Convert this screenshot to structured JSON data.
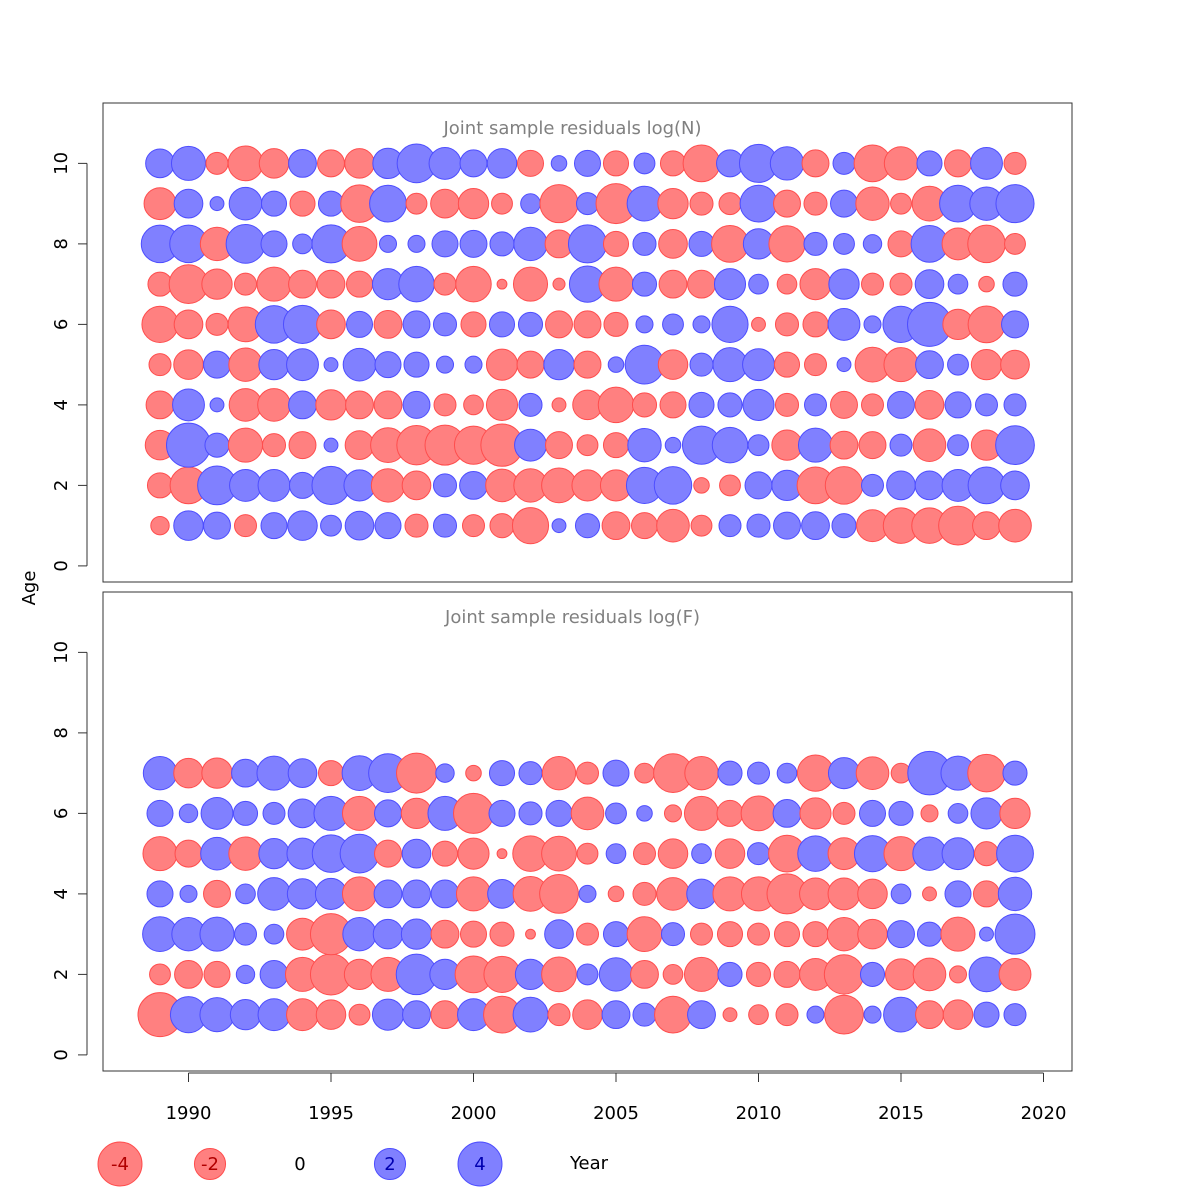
{
  "chart_data": [
    {
      "type": "scatter",
      "title": "Joint sample residuals log(N)",
      "xlabel": "Year",
      "ylabel": "Age",
      "xlim": [
        1987,
        2021
      ],
      "ylim": [
        -0.4,
        11.5
      ],
      "x_ticks": [
        1990,
        1995,
        2000,
        2005,
        2010,
        2015,
        2020
      ],
      "y_ticks": [
        0,
        2,
        4,
        6,
        8,
        10
      ],
      "show_x_tick_labels": false,
      "years": [
        1989,
        1990,
        1991,
        1992,
        1993,
        1994,
        1995,
        1996,
        1997,
        1998,
        1999,
        2000,
        2001,
        2002,
        2003,
        2004,
        2005,
        2006,
        2007,
        2008,
        2009,
        2010,
        2011,
        2012,
        2013,
        2014,
        2015,
        2016,
        2017,
        2018,
        2019
      ],
      "ages": [
        1,
        2,
        3,
        4,
        5,
        6,
        7,
        8,
        9,
        10
      ],
      "residuals": [
        [
          -0.7,
          -1.3,
          -1.8,
          -1.6,
          -1.0,
          -2.7,
          -1.2,
          2.9,
          -2.1,
          1.7
        ],
        [
          1.8,
          -2.8,
          4.0,
          2.1,
          -1.8,
          -1.7,
          -3.1,
          2.9,
          1.7,
          2.4
        ],
        [
          1.5,
          3.1,
          1.2,
          0.4,
          1.5,
          -1.0,
          -1.9,
          -2.3,
          0.4,
          -1.0
        ],
        [
          -1.0,
          2.1,
          -2.4,
          -2.2,
          -2.3,
          -2.5,
          -1.0,
          3.1,
          2.2,
          -2.5
        ],
        [
          1.4,
          2.1,
          -1.1,
          -2.2,
          1.9,
          2.9,
          -2.4,
          1.4,
          1.3,
          -1.8
        ],
        [
          1.8,
          1.4,
          -1.5,
          1.6,
          2.1,
          3.0,
          -1.6,
          0.8,
          -1.3,
          1.6
        ],
        [
          0.9,
          3.0,
          0.4,
          -1.9,
          0.4,
          -1.7,
          -1.6,
          3.0,
          1.3,
          -1.5
        ],
        [
          1.7,
          2.0,
          -1.7,
          -1.6,
          2.2,
          1.4,
          -1.4,
          -2.5,
          -2.9,
          -1.8
        ],
        [
          1.4,
          -2.3,
          -2.5,
          -1.6,
          1.4,
          -1.6,
          2.0,
          0.6,
          2.8,
          1.9
        ],
        [
          -1.1,
          -1.7,
          -3.2,
          1.5,
          1.3,
          1.5,
          2.6,
          0.6,
          -0.9,
          3.1
        ],
        [
          1.1,
          1.1,
          -3.3,
          -1.0,
          0.6,
          1.1,
          -1.0,
          1.4,
          -1.7,
          2.1
        ],
        [
          -1.0,
          1.6,
          -3.0,
          -0.8,
          0.6,
          -1.3,
          -2.6,
          1.5,
          -1.9,
          1.5
        ],
        [
          -1.2,
          -2.2,
          -3.7,
          -2.0,
          -2.0,
          1.3,
          -0.2,
          1.2,
          -0.9,
          1.8
        ],
        [
          -2.7,
          -2.3,
          2.1,
          1.1,
          -1.5,
          1.2,
          -2.4,
          2.3,
          0.8,
          -1.4
        ],
        [
          0.4,
          -2.5,
          -1.5,
          -0.4,
          1.9,
          -1.5,
          -0.3,
          -1.6,
          -3.0,
          0.5
        ],
        [
          1.2,
          -2.0,
          -0.9,
          -1.8,
          -1.5,
          -1.5,
          2.7,
          3.0,
          1.0,
          1.4
        ],
        [
          -1.6,
          -2.0,
          -1.3,
          -2.6,
          0.5,
          -1.2,
          -2.4,
          -1.3,
          -3.3,
          -1.3
        ],
        [
          -1.4,
          2.7,
          2.3,
          -1.2,
          3.1,
          0.6,
          1.2,
          1.1,
          2.5,
          0.9
        ],
        [
          -2.2,
          2.9,
          0.5,
          -1.4,
          -1.8,
          0.9,
          -1.6,
          -1.7,
          -1.9,
          -1.3
        ],
        [
          -0.9,
          -0.5,
          3.0,
          1.3,
          1.1,
          0.6,
          -1.6,
          1.3,
          -1.1,
          -2.8
        ],
        [
          1.0,
          -0.9,
          2.6,
          1.2,
          2.4,
          2.7,
          2.0,
          -2.8,
          -1.0,
          1.5
        ],
        [
          1.1,
          1.5,
          0.9,
          2.0,
          2.1,
          -0.4,
          0.8,
          1.9,
          2.8,
          3.0
        ],
        [
          1.5,
          1.9,
          -1.9,
          -1.1,
          -1.3,
          -1.1,
          -0.8,
          -2.7,
          -1.5,
          2.3
        ],
        [
          1.6,
          -2.8,
          2.4,
          1.0,
          -1.0,
          -1.3,
          -2.0,
          1.1,
          -1.1,
          -1.5
        ],
        [
          1.2,
          -2.9,
          -1.6,
          -1.5,
          0.4,
          2.1,
          1.9,
          0.9,
          1.5,
          1.0
        ],
        [
          -2.1,
          1.0,
          -1.5,
          -1.0,
          -2.5,
          0.6,
          -1.0,
          0.7,
          -2.3,
          -2.8
        ],
        [
          -2.6,
          1.7,
          1.0,
          1.5,
          -2.4,
          2.7,
          -1.0,
          -1.4,
          -0.9,
          -2.3
        ],
        [
          -2.6,
          1.7,
          -2.2,
          -1.7,
          1.6,
          4.0,
          1.7,
          2.8,
          -2.5,
          1.3
        ],
        [
          -3.1,
          2.1,
          0.9,
          1.4,
          0.9,
          -1.9,
          0.8,
          -2.1,
          2.8,
          -1.5
        ],
        [
          -1.6,
          2.8,
          -1.9,
          1.0,
          -1.9,
          -2.8,
          -0.5,
          -2.9,
          2.3,
          2.1
        ],
        [
          -2.2,
          1.7,
          3.1,
          1.0,
          -1.7,
          1.5,
          1.2,
          -0.9,
          3.0,
          -1.0
        ]
      ]
    },
    {
      "type": "scatter",
      "title": "Joint sample residuals log(F)",
      "xlabel": "Year",
      "ylabel": "Age",
      "xlim": [
        1987,
        2021
      ],
      "ylim": [
        -0.4,
        11.5
      ],
      "x_ticks": [
        1990,
        1995,
        2000,
        2005,
        2010,
        2015,
        2020
      ],
      "y_ticks": [
        0,
        2,
        4,
        6,
        8,
        10
      ],
      "show_x_tick_labels": true,
      "years": [
        1989,
        1990,
        1991,
        1992,
        1993,
        1994,
        1995,
        1996,
        1997,
        1998,
        1999,
        2000,
        2001,
        2002,
        2003,
        2004,
        2005,
        2006,
        2007,
        2008,
        2009,
        2010,
        2011,
        2012,
        2013,
        2014,
        2015,
        2016,
        2017,
        2018,
        2019
      ],
      "ages": [
        1,
        2,
        3,
        4,
        5,
        6,
        7
      ],
      "residuals": [
        [
          -4.0,
          -0.9,
          2.5,
          1.4,
          -2.4,
          1.4,
          2.3
        ],
        [
          2.7,
          -1.6,
          2.3,
          0.6,
          -1.5,
          0.7,
          -1.8
        ],
        [
          2.4,
          -1.4,
          2.4,
          -1.5,
          2.2,
          2.1,
          -1.9
        ],
        [
          1.9,
          0.7,
          1.0,
          0.8,
          -2.3,
          1.2,
          1.6
        ],
        [
          2.1,
          1.6,
          0.8,
          2.2,
          1.9,
          1.0,
          2.4
        ],
        [
          -2.1,
          -2.4,
          -2.1,
          1.9,
          2.0,
          1.7,
          1.7
        ],
        [
          -1.8,
          -3.5,
          -3.5,
          2.0,
          2.9,
          2.4,
          -1.3
        ],
        [
          -0.9,
          -1.9,
          2.3,
          -2.4,
          3.1,
          -2.4,
          2.5
        ],
        [
          2.0,
          -2.4,
          1.8,
          1.6,
          -1.5,
          1.5,
          3.1
        ],
        [
          1.6,
          3.4,
          1.9,
          1.6,
          1.7,
          -1.9,
          -3.3
        ],
        [
          -1.6,
          1.9,
          -1.6,
          1.6,
          -1.3,
          2.4,
          0.7
        ],
        [
          2.1,
          -2.8,
          -1.4,
          -2.4,
          -2.0,
          -3.3,
          -0.5
        ],
        [
          -2.8,
          -2.7,
          -1.2,
          1.7,
          -0.2,
          1.4,
          1.3
        ],
        [
          2.5,
          1.9,
          -0.2,
          -2.5,
          -2.6,
          1.1,
          1.1
        ],
        [
          -1.0,
          -2.5,
          1.7,
          -3.1,
          -2.5,
          1.4,
          -2.3
        ],
        [
          -1.8,
          0.9,
          -1.0,
          0.6,
          -0.9,
          -2.2,
          -1.0
        ],
        [
          1.6,
          2.3,
          1.3,
          -0.5,
          0.8,
          0.9,
          1.4
        ],
        [
          1.1,
          -1.6,
          -2.5,
          -1.1,
          -1.0,
          0.5,
          -0.8
        ],
        [
          -2.8,
          -0.8,
          1.1,
          -2.2,
          -1.8,
          -0.6,
          -3.1
        ],
        [
          1.6,
          -2.4,
          -1.0,
          1.8,
          0.8,
          -2.4,
          -2.3
        ],
        [
          -0.4,
          1.2,
          -1.3,
          -2.4,
          -1.8,
          -1.4,
          1.2
        ],
        [
          -0.8,
          -1.2,
          -1.0,
          -2.4,
          1.0,
          -2.5,
          1.0
        ],
        [
          -1.0,
          -1.4,
          -1.3,
          -3.3,
          -2.8,
          1.6,
          0.8
        ],
        [
          0.6,
          -2.1,
          -1.3,
          -2.1,
          2.6,
          -2.0,
          -2.7
        ],
        [
          -3.1,
          -3.2,
          -2.3,
          -2.1,
          -2.1,
          -1.0,
          2.0
        ],
        [
          0.6,
          1.2,
          -1.8,
          -1.8,
          2.7,
          1.4,
          -2.2
        ],
        [
          2.5,
          -2.0,
          1.5,
          0.8,
          -2.4,
          1.2,
          -0.8
        ],
        [
          -1.6,
          -2.2,
          1.2,
          -0.4,
          2.3,
          -0.6,
          3.9
        ],
        [
          -1.8,
          -0.6,
          -2.4,
          1.4,
          2.1,
          0.8,
          2.4
        ],
        [
          1.3,
          2.5,
          0.4,
          -1.4,
          -1.2,
          2.0,
          -2.9
        ],
        [
          1.0,
          -2.1,
          3.3,
          2.3,
          2.8,
          -1.9,
          1.2
        ]
      ]
    }
  ],
  "legend": {
    "items": [
      {
        "label": "-4",
        "value": -4
      },
      {
        "label": "-2",
        "value": -2
      },
      {
        "label": "0",
        "value": 0
      },
      {
        "label": "2",
        "value": 2
      },
      {
        "label": "4",
        "value": 4
      }
    ]
  },
  "colors": {
    "negative_fill": "#ff8080",
    "negative_stroke": "#ff4d4d",
    "negative_text": "#b00000",
    "positive_fill": "#8080ff",
    "positive_stroke": "#4d4dff",
    "positive_text": "#0000b0",
    "panel_title": "#808080"
  }
}
